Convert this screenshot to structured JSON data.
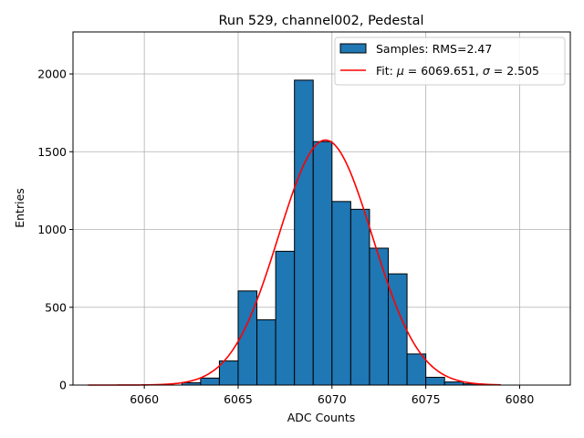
{
  "chart_data": {
    "type": "bar",
    "title": "Run 529, channel002, Pedestal",
    "xlabel": "ADC Counts",
    "ylabel": "Entries",
    "xlim": [
      6056.2,
      6082.7
    ],
    "ylim": [
      0,
      2270
    ],
    "xticks": [
      6060,
      6065,
      6070,
      6075,
      6080
    ],
    "yticks": [
      0,
      500,
      1000,
      1500,
      2000
    ],
    "grid": true,
    "legend_position": "top-right",
    "histogram": {
      "name": "Samples: RMS=2.47",
      "bin_width": 1,
      "bin_starts": [
        6062,
        6063,
        6064,
        6065,
        6066,
        6067,
        6068,
        6069,
        6070,
        6071,
        6072,
        6073,
        6074,
        6075,
        6076,
        6077
      ],
      "values": [
        15,
        45,
        155,
        605,
        420,
        860,
        1960,
        1565,
        1180,
        1130,
        880,
        715,
        200,
        50,
        20,
        8
      ],
      "color": "#1f77b4",
      "edge_color": "#000000"
    },
    "fit": {
      "name_prefix": "Fit: ",
      "mu_label": "μ",
      "mu_value": "6069.651",
      "sigma_label": "σ",
      "sigma_value": "2.505",
      "mu": 6069.651,
      "sigma": 2.505,
      "amplitude": 1575,
      "x_range": [
        6057,
        6079
      ],
      "color": "#ff0000"
    }
  }
}
